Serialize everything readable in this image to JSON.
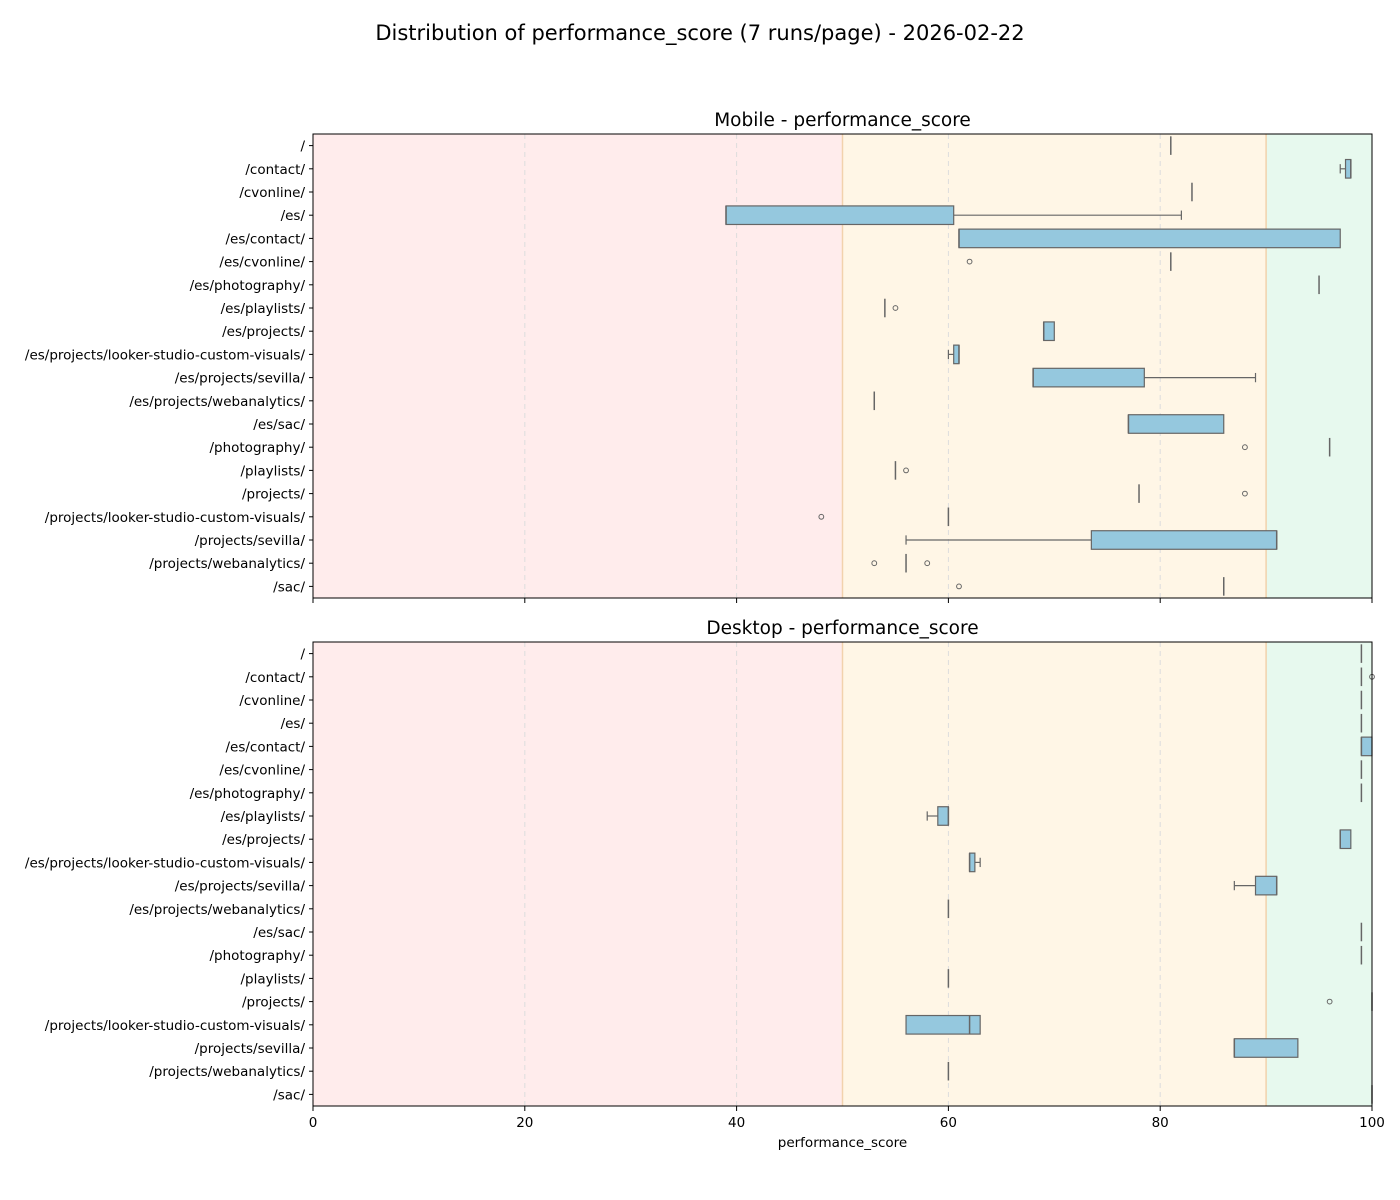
{
  "title": "Distribution of performance_score (7 runs/page) - 2026-02-22",
  "chart_data": [
    {
      "type": "boxplot",
      "title": "Mobile - performance_score",
      "xlabel": "",
      "xlim": [
        0,
        100
      ],
      "xticks": [
        0,
        20,
        40,
        60,
        80,
        100
      ],
      "grid": "vertical dashed",
      "bands": [
        {
          "from": 0,
          "to": 50,
          "color": "#ffecec"
        },
        {
          "from": 50,
          "to": 90,
          "color": "#fff6e6"
        },
        {
          "from": 90,
          "to": 100,
          "color": "#e7f9ee"
        }
      ],
      "categories": [
        "/",
        "/contact/",
        "/cvonline/",
        "/es/",
        "/es/contact/",
        "/es/cvonline/",
        "/es/photography/",
        "/es/playlists/",
        "/es/projects/",
        "/es/projects/looker-studio-custom-visuals/",
        "/es/projects/sevilla/",
        "/es/projects/webanalytics/",
        "/es/sac/",
        "/photography/",
        "/playlists/",
        "/projects/",
        "/projects/looker-studio-custom-visuals/",
        "/projects/sevilla/",
        "/projects/webanalytics/",
        "/sac/"
      ],
      "boxes": [
        {
          "min": 81,
          "q1": 81,
          "median": 81,
          "q3": 81,
          "max": 81,
          "outliers": []
        },
        {
          "min": 97,
          "q1": 97.5,
          "median": 98,
          "q3": 98,
          "max": 98,
          "outliers": []
        },
        {
          "min": 83,
          "q1": 83,
          "median": 83,
          "q3": 83,
          "max": 83,
          "outliers": []
        },
        {
          "min": 39,
          "q1": 39,
          "median": 39,
          "q3": 60.5,
          "max": 82,
          "outliers": []
        },
        {
          "min": 61,
          "q1": 61,
          "median": 61,
          "q3": 97,
          "max": 97,
          "outliers": []
        },
        {
          "min": 81,
          "q1": 81,
          "median": 81,
          "q3": 81,
          "max": 81,
          "outliers": [
            62
          ]
        },
        {
          "min": 95,
          "q1": 95,
          "median": 95,
          "q3": 95,
          "max": 95,
          "outliers": []
        },
        {
          "min": 54,
          "q1": 54,
          "median": 54,
          "q3": 54,
          "max": 54,
          "outliers": [
            55
          ]
        },
        {
          "min": 69,
          "q1": 69,
          "median": 69,
          "q3": 70,
          "max": 70,
          "outliers": []
        },
        {
          "min": 60,
          "q1": 60.5,
          "median": 61,
          "q3": 61,
          "max": 61,
          "outliers": []
        },
        {
          "min": 68,
          "q1": 68,
          "median": 68,
          "q3": 78.5,
          "max": 89,
          "outliers": []
        },
        {
          "min": 53,
          "q1": 53,
          "median": 53,
          "q3": 53,
          "max": 53,
          "outliers": []
        },
        {
          "min": 77,
          "q1": 77,
          "median": 77,
          "q3": 86,
          "max": 86,
          "outliers": []
        },
        {
          "min": 96,
          "q1": 96,
          "median": 96,
          "q3": 96,
          "max": 96,
          "outliers": [
            88
          ]
        },
        {
          "min": 55,
          "q1": 55,
          "median": 55,
          "q3": 55,
          "max": 55,
          "outliers": [
            56
          ]
        },
        {
          "min": 78,
          "q1": 78,
          "median": 78,
          "q3": 78,
          "max": 78,
          "outliers": [
            88
          ]
        },
        {
          "min": 60,
          "q1": 60,
          "median": 60,
          "q3": 60,
          "max": 60,
          "outliers": [
            48
          ]
        },
        {
          "min": 56,
          "q1": 73.5,
          "median": 91,
          "q3": 91,
          "max": 91,
          "outliers": []
        },
        {
          "min": 56,
          "q1": 56,
          "median": 56,
          "q3": 56,
          "max": 56,
          "outliers": [
            53,
            58
          ]
        },
        {
          "min": 86,
          "q1": 86,
          "median": 86,
          "q3": 86,
          "max": 86,
          "outliers": [
            61
          ]
        }
      ]
    },
    {
      "type": "boxplot",
      "title": "Desktop - performance_score",
      "xlabel": "performance_score",
      "xlim": [
        0,
        100
      ],
      "xticks": [
        0,
        20,
        40,
        60,
        80,
        100
      ],
      "grid": "vertical dashed",
      "bands": [
        {
          "from": 0,
          "to": 50,
          "color": "#ffecec"
        },
        {
          "from": 50,
          "to": 90,
          "color": "#fff6e6"
        },
        {
          "from": 90,
          "to": 100,
          "color": "#e7f9ee"
        }
      ],
      "categories": [
        "/",
        "/contact/",
        "/cvonline/",
        "/es/",
        "/es/contact/",
        "/es/cvonline/",
        "/es/photography/",
        "/es/playlists/",
        "/es/projects/",
        "/es/projects/looker-studio-custom-visuals/",
        "/es/projects/sevilla/",
        "/es/projects/webanalytics/",
        "/es/sac/",
        "/photography/",
        "/playlists/",
        "/projects/",
        "/projects/looker-studio-custom-visuals/",
        "/projects/sevilla/",
        "/projects/webanalytics/",
        "/sac/"
      ],
      "boxes": [
        {
          "min": 99,
          "q1": 99,
          "median": 99,
          "q3": 99,
          "max": 99,
          "outliers": []
        },
        {
          "min": 99,
          "q1": 99,
          "median": 99,
          "q3": 99,
          "max": 99,
          "outliers": [
            100
          ]
        },
        {
          "min": 99,
          "q1": 99,
          "median": 99,
          "q3": 99,
          "max": 99,
          "outliers": []
        },
        {
          "min": 99,
          "q1": 99,
          "median": 99,
          "q3": 99,
          "max": 99,
          "outliers": []
        },
        {
          "min": 99,
          "q1": 99,
          "median": 99,
          "q3": 100,
          "max": 100,
          "outliers": []
        },
        {
          "min": 99,
          "q1": 99,
          "median": 99,
          "q3": 99,
          "max": 99,
          "outliers": []
        },
        {
          "min": 99,
          "q1": 99,
          "median": 99,
          "q3": 99,
          "max": 99,
          "outliers": []
        },
        {
          "min": 58,
          "q1": 59,
          "median": 60,
          "q3": 60,
          "max": 60,
          "outliers": []
        },
        {
          "min": 97,
          "q1": 97,
          "median": 97,
          "q3": 98,
          "max": 98,
          "outliers": []
        },
        {
          "min": 62,
          "q1": 62,
          "median": 62,
          "q3": 62.5,
          "max": 63,
          "outliers": []
        },
        {
          "min": 87,
          "q1": 89,
          "median": 91,
          "q3": 91,
          "max": 91,
          "outliers": []
        },
        {
          "min": 60,
          "q1": 60,
          "median": 60,
          "q3": 60,
          "max": 60,
          "outliers": []
        },
        {
          "min": 99,
          "q1": 99,
          "median": 99,
          "q3": 99,
          "max": 99,
          "outliers": []
        },
        {
          "min": 99,
          "q1": 99,
          "median": 99,
          "q3": 99,
          "max": 99,
          "outliers": []
        },
        {
          "min": 60,
          "q1": 60,
          "median": 60,
          "q3": 60,
          "max": 60,
          "outliers": []
        },
        {
          "min": 100,
          "q1": 100,
          "median": 100,
          "q3": 100,
          "max": 100,
          "outliers": [
            96
          ]
        },
        {
          "min": 56,
          "q1": 56,
          "median": 62,
          "q3": 63,
          "max": 63,
          "outliers": []
        },
        {
          "min": 87,
          "q1": 87,
          "median": 87,
          "q3": 93,
          "max": 93,
          "outliers": []
        },
        {
          "min": 60,
          "q1": 60,
          "median": 60,
          "q3": 60,
          "max": 60,
          "outliers": []
        },
        {
          "min": 100,
          "q1": 100,
          "median": 100,
          "q3": 100,
          "max": 100,
          "outliers": []
        }
      ]
    }
  ],
  "colors": {
    "box_fill": "#95c8de",
    "box_edge": "#666666",
    "grid": "#dddddd",
    "band_border": "#f2d2ad"
  }
}
